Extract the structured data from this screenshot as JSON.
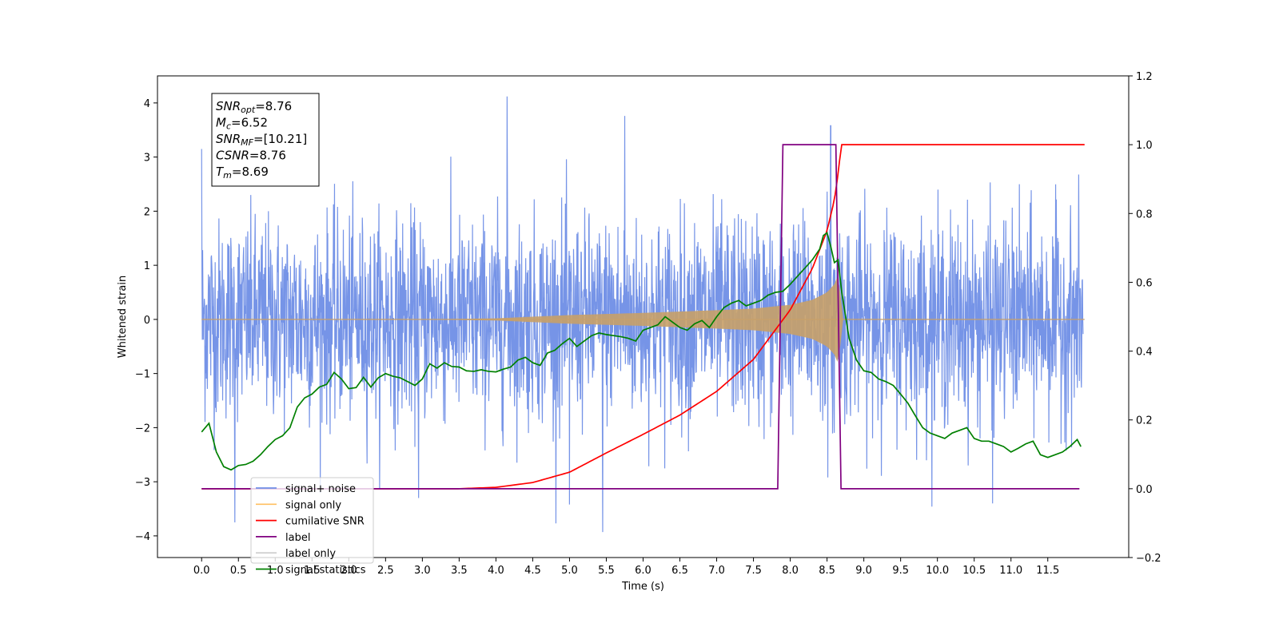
{
  "chart_data": {
    "type": "line",
    "xlabel": "Time (s)",
    "ylabel_left": "Whitened strain",
    "ylabel_right": "",
    "xlim": [
      -0.6,
      12.6
    ],
    "ylim_left": [
      -4.4,
      4.5
    ],
    "ylim_right": [
      -0.2,
      1.2
    ],
    "grid": false,
    "legend_position": "lower-left",
    "x_ticks": [
      0.0,
      0.5,
      1.0,
      1.5,
      2.0,
      2.5,
      3.0,
      3.5,
      4.0,
      4.5,
      5.0,
      5.5,
      6.0,
      6.5,
      7.0,
      7.5,
      8.0,
      8.5,
      9.0,
      9.5,
      10.0,
      10.5,
      11.0,
      11.5
    ],
    "x_tick_labels": [
      "0.0",
      "0.5",
      "1.0",
      "1.5",
      "2.0",
      "2.5",
      "3.0",
      "3.5",
      "4.0",
      "4.5",
      "5.0",
      "5.5",
      "6.0",
      "6.5",
      "7.0",
      "7.5",
      "8.0",
      "8.5",
      "9.0",
      "9.5",
      "10.0",
      "10.5",
      "11.0",
      "11.5"
    ],
    "y_left_ticks": [
      -4,
      -3,
      -2,
      -1,
      0,
      1,
      2,
      3,
      4
    ],
    "y_left_tick_labels": [
      "−4",
      "−3",
      "−2",
      "−1",
      "0",
      "1",
      "2",
      "3",
      "4"
    ],
    "y_right_ticks": [
      -0.2,
      0.0,
      0.2,
      0.4,
      0.6,
      0.8,
      1.0,
      1.2
    ],
    "y_right_tick_labels": [
      "−0.2",
      "0.0",
      "0.2",
      "0.4",
      "0.6",
      "0.8",
      "1.0",
      "1.2"
    ],
    "annotation": {
      "lines": [
        {
          "main": "SNR",
          "sub": "opt",
          "rest": "=8.76"
        },
        {
          "main": "M",
          "sub": "c",
          "rest": "=6.52"
        },
        {
          "main": "SNR",
          "sub": "MF",
          "rest": "=[10.21]"
        },
        {
          "main": "CSNR",
          "sub": "",
          "rest": "=8.76"
        },
        {
          "main": "T",
          "sub": "m",
          "rest": "=8.69"
        }
      ]
    },
    "legend": [
      {
        "label": "signal+ noise",
        "color": "#6f8ee6"
      },
      {
        "label": "signal only",
        "color": "#ffbf60"
      },
      {
        "label": "cumilative SNR",
        "color": "#ff0000"
      },
      {
        "label": "label",
        "color": "#800080"
      },
      {
        "label": "label only",
        "color": "#cccccc"
      },
      {
        "label": "signal statistics",
        "color": "#008000"
      }
    ],
    "series": [
      {
        "name": "signal+ noise",
        "axis": "left",
        "color": "#6f8ee6",
        "noise_std": 1.0,
        "t_start": 0.0,
        "t_end": 11.98,
        "peak_values": [
          {
            "x": 0.0,
            "y": 3.15
          },
          {
            "x": 0.45,
            "y": -3.75
          },
          {
            "x": 2.95,
            "y": -3.3
          },
          {
            "x": 4.15,
            "y": 4.12
          },
          {
            "x": 5.0,
            "y": -3.42
          },
          {
            "x": 5.45,
            "y": -3.93
          },
          {
            "x": 5.75,
            "y": 3.76
          },
          {
            "x": 8.55,
            "y": 3.58
          },
          {
            "x": 10.75,
            "y": -3.4
          }
        ]
      },
      {
        "name": "signal only",
        "axis": "left",
        "color": "#c8a068",
        "envelope": {
          "x": [
            0.0,
            3.0,
            4.0,
            5.0,
            6.0,
            7.0,
            7.5,
            8.0,
            8.3,
            8.5,
            8.6,
            8.66,
            8.69,
            8.7,
            12.0
          ],
          "amp": [
            0.0,
            0.0,
            0.02,
            0.08,
            0.12,
            0.17,
            0.2,
            0.27,
            0.36,
            0.5,
            0.65,
            0.85,
            0.3,
            0.0,
            0.0
          ]
        }
      },
      {
        "name": "cumilative SNR",
        "axis": "right",
        "color": "#ff0000",
        "x": [
          0.0,
          3.5,
          4.0,
          4.5,
          5.0,
          5.5,
          6.0,
          6.5,
          7.0,
          7.5,
          8.0,
          8.3,
          8.5,
          8.6,
          8.66,
          8.69,
          12.0
        ],
        "y": [
          0.0,
          0.0,
          0.004,
          0.018,
          0.048,
          0.104,
          0.158,
          0.214,
          0.283,
          0.376,
          0.52,
          0.64,
          0.75,
          0.84,
          0.93,
          1.0,
          1.0
        ]
      },
      {
        "name": "label",
        "axis": "right",
        "color": "#800080",
        "x": [
          0.0,
          7.83,
          7.9,
          8.62,
          8.69,
          11.93
        ],
        "y": [
          0.0,
          0.0,
          1.0,
          1.0,
          0.0,
          0.0
        ]
      },
      {
        "name": "signal statistics",
        "axis": "left",
        "color": "#008000",
        "x": [
          0.0,
          0.1,
          0.2,
          0.3,
          0.4,
          0.5,
          0.6,
          0.7,
          0.8,
          0.9,
          1.0,
          1.1,
          1.2,
          1.3,
          1.4,
          1.5,
          1.6,
          1.7,
          1.8,
          1.9,
          2.0,
          2.1,
          2.2,
          2.3,
          2.4,
          2.5,
          2.6,
          2.7,
          2.8,
          2.9,
          3.0,
          3.1,
          3.2,
          3.3,
          3.4,
          3.5,
          3.6,
          3.7,
          3.8,
          3.9,
          4.0,
          4.1,
          4.2,
          4.3,
          4.4,
          4.5,
          4.6,
          4.7,
          4.8,
          4.9,
          5.0,
          5.1,
          5.2,
          5.3,
          5.4,
          5.5,
          5.6,
          5.7,
          5.8,
          5.9,
          6.0,
          6.1,
          6.2,
          6.3,
          6.4,
          6.5,
          6.6,
          6.7,
          6.8,
          6.9,
          7.0,
          7.1,
          7.2,
          7.3,
          7.4,
          7.5,
          7.6,
          7.7,
          7.8,
          7.9,
          8.0,
          8.1,
          8.2,
          8.3,
          8.4,
          8.45,
          8.5,
          8.55,
          8.6,
          8.65,
          8.7,
          8.8,
          8.9,
          9.0,
          9.1,
          9.2,
          9.3,
          9.4,
          9.5,
          9.6,
          9.7,
          9.8,
          9.9,
          10.0,
          10.1,
          10.2,
          10.3,
          10.4,
          10.5,
          10.6,
          10.7,
          10.8,
          10.9,
          11.0,
          11.1,
          11.2,
          11.3,
          11.4,
          11.5,
          11.6,
          11.7,
          11.8,
          11.9,
          11.95
        ],
        "y": [
          -2.08,
          -1.92,
          -2.45,
          -2.72,
          -2.78,
          -2.7,
          -2.68,
          -2.62,
          -2.5,
          -2.35,
          -2.22,
          -2.15,
          -2.0,
          -1.62,
          -1.45,
          -1.38,
          -1.25,
          -1.2,
          -0.98,
          -1.1,
          -1.28,
          -1.26,
          -1.07,
          -1.25,
          -1.08,
          -1.0,
          -1.05,
          -1.08,
          -1.15,
          -1.22,
          -1.1,
          -0.82,
          -0.9,
          -0.8,
          -0.87,
          -0.88,
          -0.95,
          -0.96,
          -0.93,
          -0.96,
          -0.97,
          -0.92,
          -0.88,
          -0.75,
          -0.7,
          -0.8,
          -0.85,
          -0.62,
          -0.57,
          -0.45,
          -0.35,
          -0.5,
          -0.4,
          -0.3,
          -0.25,
          -0.28,
          -0.3,
          -0.32,
          -0.35,
          -0.4,
          -0.2,
          -0.15,
          -0.1,
          0.05,
          -0.05,
          -0.15,
          -0.2,
          -0.08,
          -0.02,
          -0.15,
          0.05,
          0.22,
          0.3,
          0.35,
          0.25,
          0.3,
          0.35,
          0.45,
          0.5,
          0.52,
          0.65,
          0.8,
          0.95,
          1.1,
          1.3,
          1.55,
          1.6,
          1.35,
          1.05,
          1.1,
          0.5,
          -0.35,
          -0.75,
          -0.95,
          -0.98,
          -1.1,
          -1.15,
          -1.22,
          -1.38,
          -1.55,
          -1.78,
          -2.0,
          -2.1,
          -2.15,
          -2.2,
          -2.1,
          -2.05,
          -2.0,
          -2.2,
          -2.25,
          -2.25,
          -2.3,
          -2.35,
          -2.45,
          -2.38,
          -2.3,
          -2.25,
          -2.5,
          -2.55,
          -2.5,
          -2.45,
          -2.35,
          -2.22,
          -2.35
        ]
      }
    ]
  }
}
